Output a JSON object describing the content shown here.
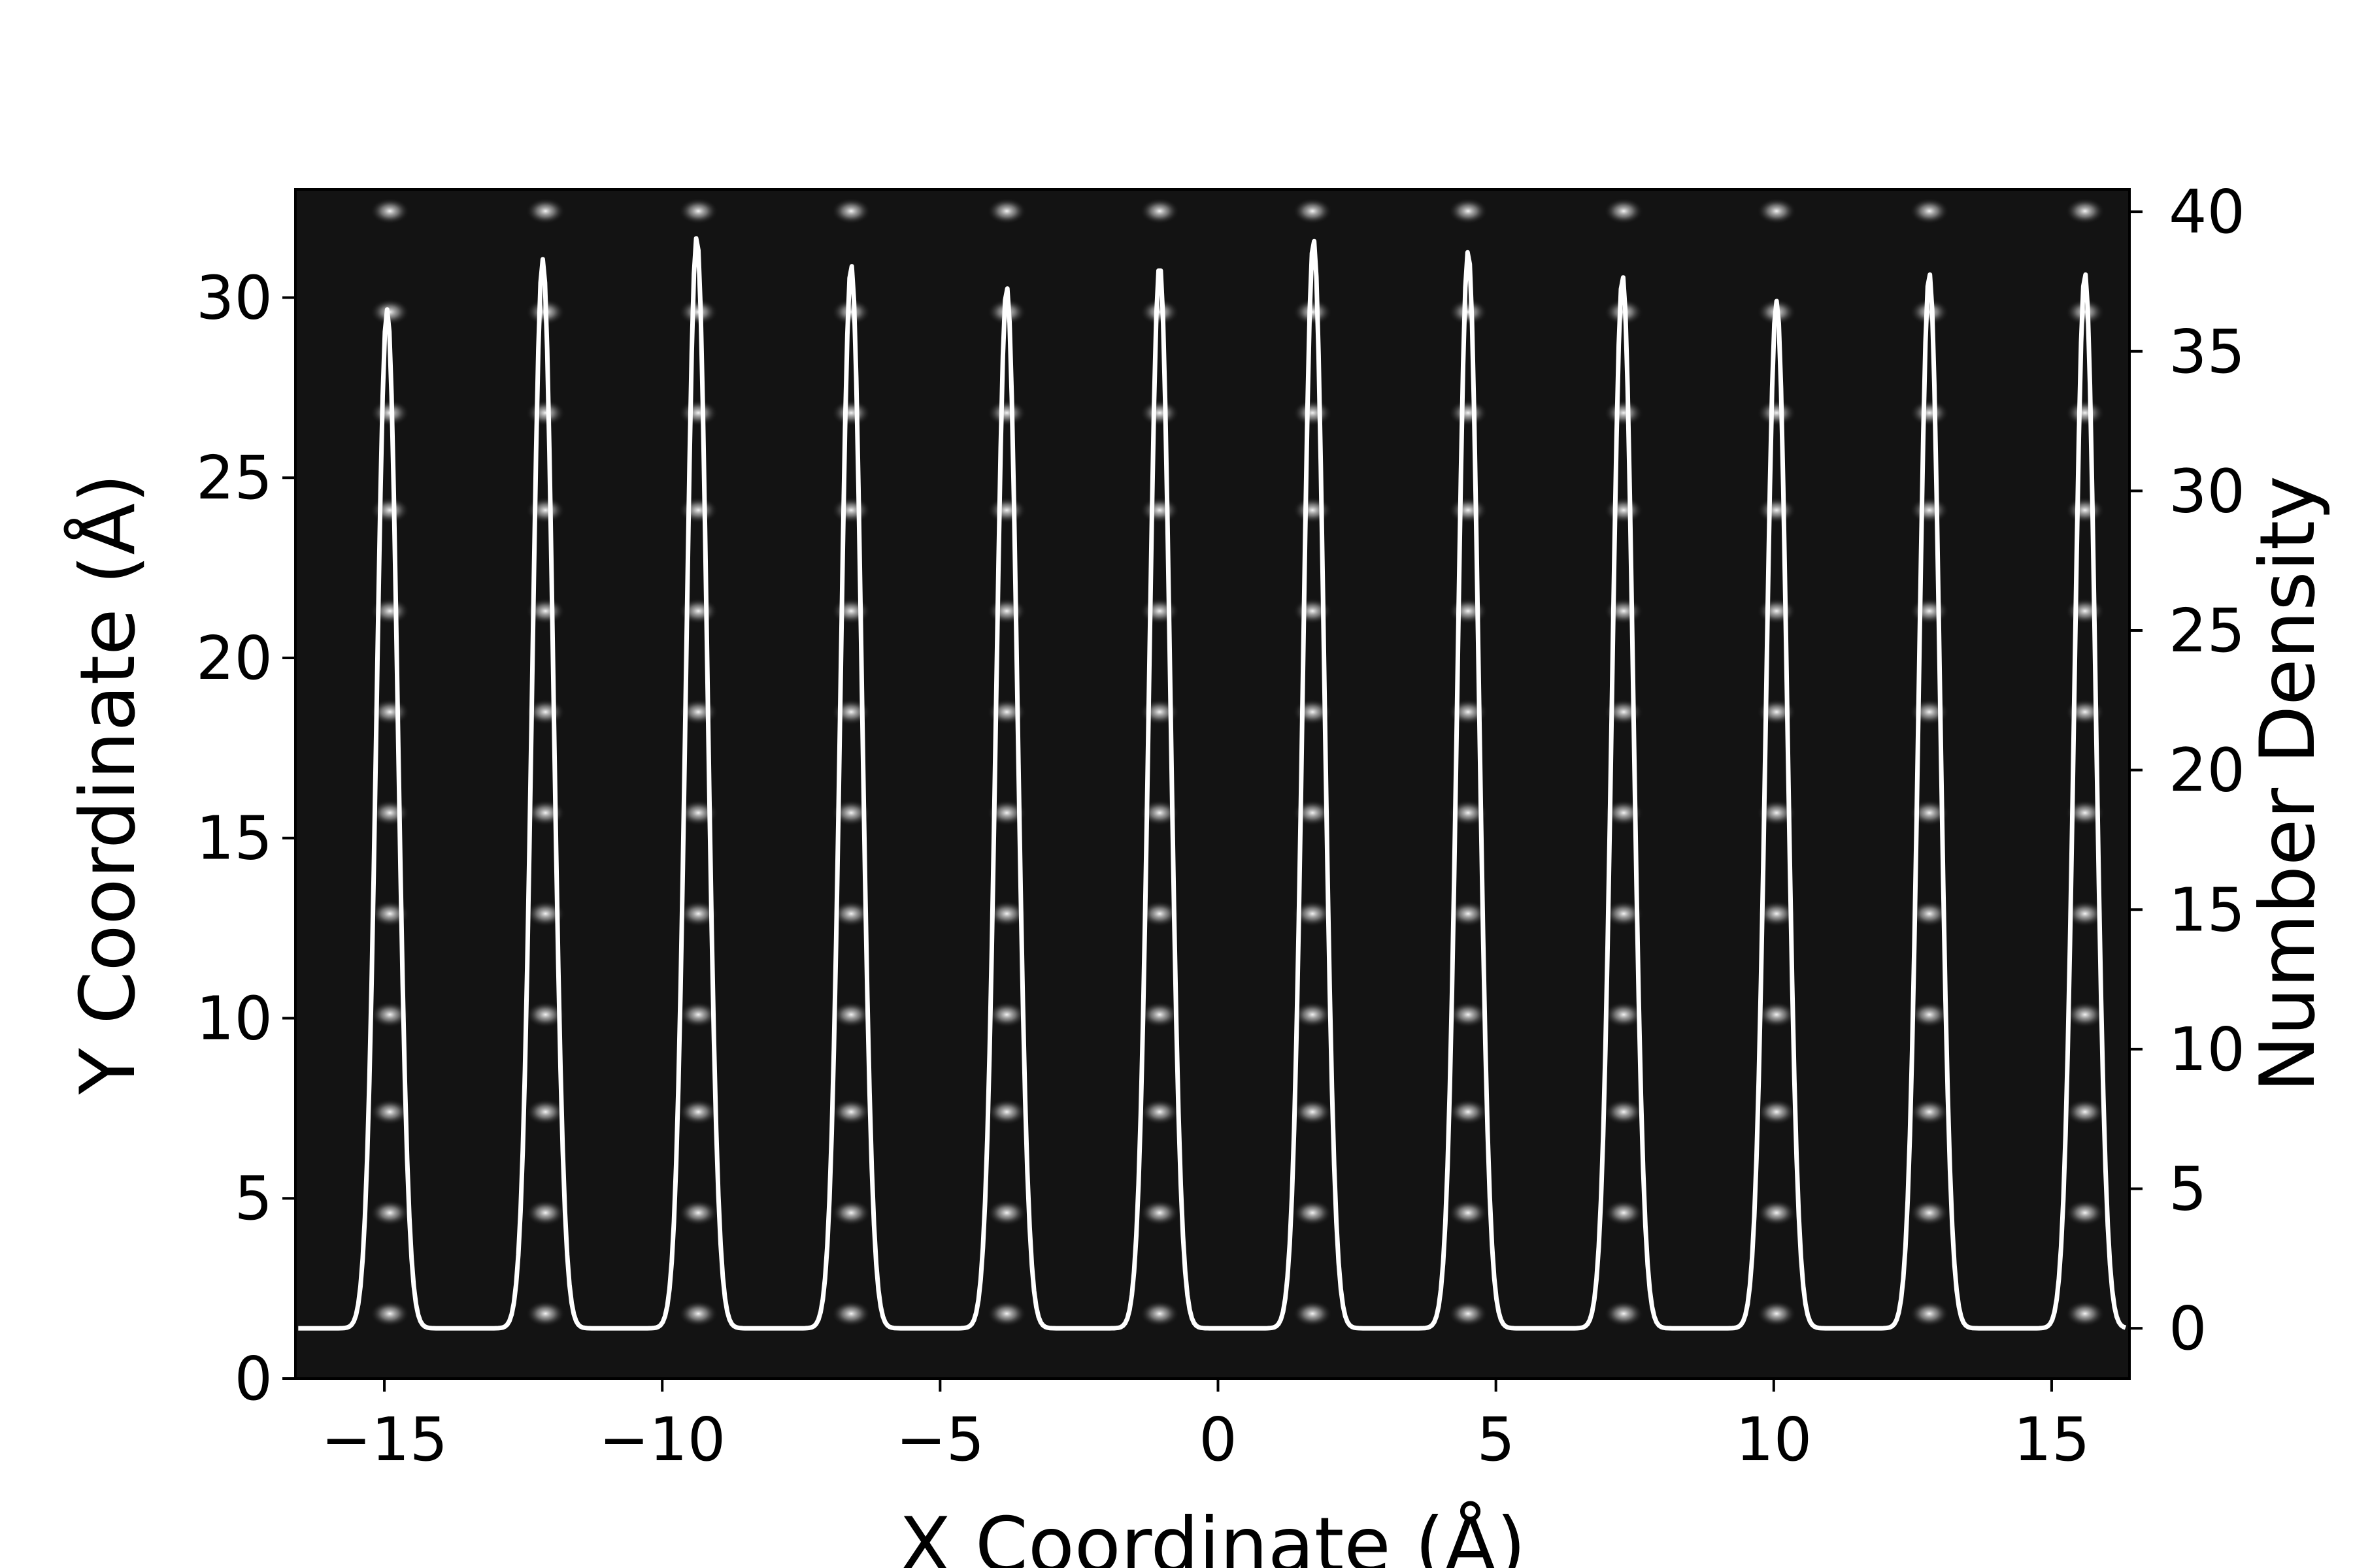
{
  "chart_data": {
    "type": "line",
    "title": "",
    "xlabel": "X Coordinate (Å)",
    "ylabel": "Y Coordinate (Å)",
    "y2label": "Number Density",
    "xlim": [
      -16.6,
      16.4
    ],
    "ylim": [
      0,
      33
    ],
    "y2lim": [
      -1.8,
      40.8
    ],
    "x_ticks": [
      -15,
      -10,
      -5,
      0,
      5,
      10,
      15
    ],
    "x_tick_labels": [
      "−15",
      "−10",
      "−5",
      "0",
      "5",
      "10",
      "15"
    ],
    "y_ticks": [
      0,
      5,
      10,
      15,
      20,
      25,
      30
    ],
    "y_tick_labels": [
      "0",
      "5",
      "10",
      "15",
      "20",
      "25",
      "30"
    ],
    "y2_ticks": [
      0,
      5,
      10,
      15,
      20,
      25,
      30,
      35,
      40
    ],
    "y2_tick_labels": [
      "0",
      "5",
      "10",
      "15",
      "20",
      "25",
      "30",
      "35",
      "40"
    ],
    "grid": false,
    "legend": "none",
    "background_color": "#131313",
    "line_color": "#ffffff",
    "atom_columns_x": [
      -14.9,
      -12.1,
      -9.35,
      -6.6,
      -3.8,
      -1.05,
      1.7,
      4.5,
      7.3,
      10.05,
      12.8,
      15.6
    ],
    "atom_rows_y": [
      1.8,
      4.6,
      7.4,
      10.1,
      12.9,
      15.7,
      18.5,
      21.3,
      24.1,
      26.8,
      29.6,
      32.4
    ],
    "density_profile": {
      "baseline": 0.0,
      "peak_x": [
        -14.95,
        -12.15,
        -9.38,
        -6.6,
        -3.8,
        -1.05,
        1.72,
        4.5,
        7.28,
        10.05,
        12.8,
        15.6
      ],
      "peak_height": [
        36.5,
        38.3,
        39.1,
        38.1,
        37.3,
        38.1,
        39.0,
        38.6,
        37.7,
        36.8,
        37.8,
        37.8
      ]
    }
  }
}
